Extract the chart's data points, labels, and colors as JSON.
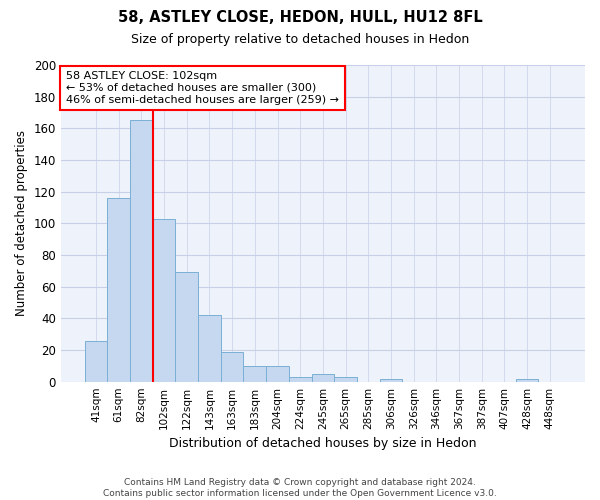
{
  "title": "58, ASTLEY CLOSE, HEDON, HULL, HU12 8FL",
  "subtitle": "Size of property relative to detached houses in Hedon",
  "xlabel": "Distribution of detached houses by size in Hedon",
  "ylabel": "Number of detached properties",
  "bar_color": "#c5d8f0",
  "bar_edge_color": "#7aafd4",
  "red_line_index": 3,
  "categories": [
    "41sqm",
    "61sqm",
    "82sqm",
    "102sqm",
    "122sqm",
    "143sqm",
    "163sqm",
    "183sqm",
    "204sqm",
    "224sqm",
    "245sqm",
    "265sqm",
    "285sqm",
    "306sqm",
    "326sqm",
    "346sqm",
    "367sqm",
    "387sqm",
    "407sqm",
    "428sqm",
    "448sqm"
  ],
  "values": [
    26,
    116,
    165,
    103,
    69,
    42,
    19,
    10,
    10,
    3,
    5,
    3,
    0,
    2,
    0,
    0,
    0,
    0,
    0,
    2,
    0
  ],
  "ylim": [
    0,
    200
  ],
  "yticks": [
    0,
    20,
    40,
    60,
    80,
    100,
    120,
    140,
    160,
    180,
    200
  ],
  "annotation_line1": "58 ASTLEY CLOSE: 102sqm",
  "annotation_line2": "← 53% of detached houses are smaller (300)",
  "annotation_line3": "46% of semi-detached houses are larger (259) →",
  "background_color": "#eef2fb",
  "grid_color": "#c8d0e8",
  "footer_line1": "Contains HM Land Registry data © Crown copyright and database right 2024.",
  "footer_line2": "Contains public sector information licensed under the Open Government Licence v3.0."
}
